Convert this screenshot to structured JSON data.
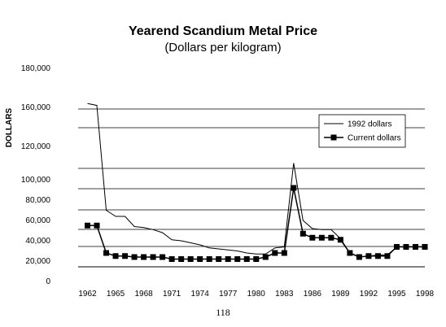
{
  "chart_data": {
    "type": "line",
    "title": "Yearend Scandium Metal Price",
    "subtitle": "(Dollars per kilogram)",
    "ylabel": "DOLLARS",
    "xlabel": "",
    "y_tick_labels": [
      "0",
      "20,000",
      "40,000",
      "60,000",
      "80,000",
      "100,000",
      "120,000",
      "160,000",
      "180,000"
    ],
    "x_tick_labels": [
      "1962",
      "1965",
      "1968",
      "1971",
      "1974",
      "1977",
      "1980",
      "1983",
      "1986",
      "1989",
      "1992",
      "1995",
      "1998"
    ],
    "legend": {
      "placement": "right"
    },
    "grid": true,
    "series": [
      {
        "name": "1992 dollars",
        "marker": "none",
        "color": "#000000",
        "points": [
          {
            "x": 1962,
            "y": 162000
          },
          {
            "x": 1963,
            "y": 161000
          },
          {
            "x": 1964,
            "y": 70000
          },
          {
            "x": 1965,
            "y": 64000
          },
          {
            "x": 1966,
            "y": 64000
          },
          {
            "x": 1967,
            "y": 54000
          },
          {
            "x": 1968,
            "y": 53000
          },
          {
            "x": 1969,
            "y": 51000
          },
          {
            "x": 1970,
            "y": 48000
          },
          {
            "x": 1971,
            "y": 41000
          },
          {
            "x": 1972,
            "y": 40000
          },
          {
            "x": 1973,
            "y": 38000
          },
          {
            "x": 1974,
            "y": 36000
          },
          {
            "x": 1975,
            "y": 33000
          },
          {
            "x": 1976,
            "y": 32000
          },
          {
            "x": 1977,
            "y": 31000
          },
          {
            "x": 1978,
            "y": 30000
          },
          {
            "x": 1979,
            "y": 28000
          },
          {
            "x": 1980,
            "y": 27000
          },
          {
            "x": 1981,
            "y": 27000
          },
          {
            "x": 1982,
            "y": 33000
          },
          {
            "x": 1983,
            "y": 34000
          },
          {
            "x": 1984,
            "y": 110000
          },
          {
            "x": 1985,
            "y": 60000
          },
          {
            "x": 1986,
            "y": 52000
          },
          {
            "x": 1987,
            "y": 51000
          },
          {
            "x": 1988,
            "y": 51000
          },
          {
            "x": 1989,
            "y": 42000
          },
          {
            "x": 1990,
            "y": 28000
          },
          {
            "x": 1991,
            "y": 24000
          },
          {
            "x": 1992,
            "y": 25000
          },
          {
            "x": 1993,
            "y": 26000
          },
          {
            "x": 1994,
            "y": 26000
          },
          {
            "x": 1995,
            "y": 34000
          },
          {
            "x": 1996,
            "y": 34000
          },
          {
            "x": 1997,
            "y": 34000
          },
          {
            "x": 1998,
            "y": 34000
          }
        ]
      },
      {
        "name": "Current dollars",
        "marker": "square",
        "color": "#000000",
        "points": [
          {
            "x": 1962,
            "y": 55000
          },
          {
            "x": 1963,
            "y": 55000
          },
          {
            "x": 1964,
            "y": 28000
          },
          {
            "x": 1965,
            "y": 25000
          },
          {
            "x": 1966,
            "y": 25000
          },
          {
            "x": 1967,
            "y": 24000
          },
          {
            "x": 1968,
            "y": 24000
          },
          {
            "x": 1969,
            "y": 24000
          },
          {
            "x": 1970,
            "y": 24000
          },
          {
            "x": 1971,
            "y": 22000
          },
          {
            "x": 1972,
            "y": 22000
          },
          {
            "x": 1973,
            "y": 22000
          },
          {
            "x": 1974,
            "y": 22000
          },
          {
            "x": 1975,
            "y": 22000
          },
          {
            "x": 1976,
            "y": 22000
          },
          {
            "x": 1977,
            "y": 22000
          },
          {
            "x": 1978,
            "y": 22000
          },
          {
            "x": 1979,
            "y": 22000
          },
          {
            "x": 1980,
            "y": 22000
          },
          {
            "x": 1981,
            "y": 24000
          },
          {
            "x": 1982,
            "y": 28000
          },
          {
            "x": 1983,
            "y": 28000
          },
          {
            "x": 1984,
            "y": 92000
          },
          {
            "x": 1985,
            "y": 47000
          },
          {
            "x": 1986,
            "y": 43000
          },
          {
            "x": 1987,
            "y": 43000
          },
          {
            "x": 1988,
            "y": 43000
          },
          {
            "x": 1989,
            "y": 41000
          },
          {
            "x": 1990,
            "y": 28000
          },
          {
            "x": 1991,
            "y": 24000
          },
          {
            "x": 1992,
            "y": 25000
          },
          {
            "x": 1993,
            "y": 25000
          },
          {
            "x": 1994,
            "y": 25000
          },
          {
            "x": 1995,
            "y": 34000
          },
          {
            "x": 1996,
            "y": 34000
          },
          {
            "x": 1997,
            "y": 34000
          },
          {
            "x": 1998,
            "y": 34000
          }
        ]
      }
    ]
  },
  "page": {
    "number": "118"
  }
}
